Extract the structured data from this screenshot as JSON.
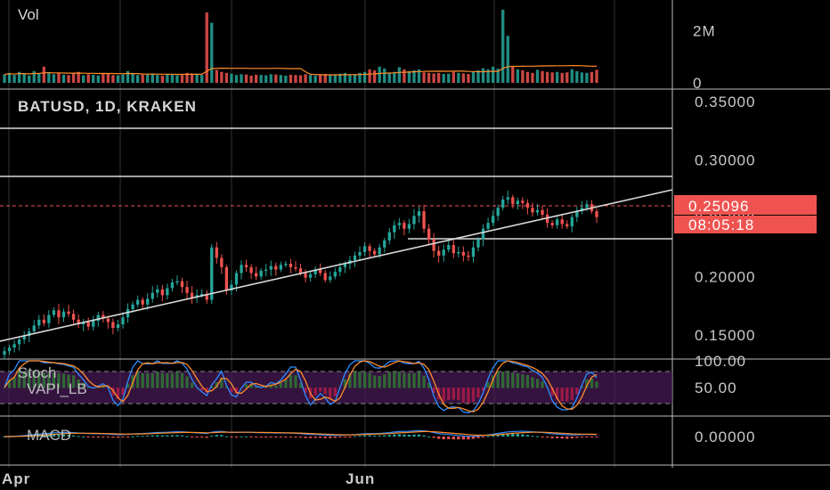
{
  "chart_data": {
    "type": "candlestick",
    "title": "BATUSD, 1D, KRAKEN",
    "price_axis": {
      "ticks": [
        {
          "value": 0.35,
          "label": "0.35000"
        },
        {
          "value": 0.3,
          "label": "0.30000"
        },
        {
          "value": 0.25,
          "label": "0.25000"
        },
        {
          "value": 0.2,
          "label": "0.20000"
        },
        {
          "value": 0.15,
          "label": "0.15000"
        }
      ],
      "ylim": [
        0.13,
        0.36
      ]
    },
    "last_price": {
      "label": "0.25096",
      "value": 0.25096,
      "countdown": "08:05:18"
    },
    "time_axis": {
      "ticks": [
        "Apr",
        "Jun"
      ]
    },
    "candles_close": [
      0.136,
      0.139,
      0.142,
      0.146,
      0.149,
      0.153,
      0.158,
      0.163,
      0.16,
      0.167,
      0.171,
      0.165,
      0.17,
      0.168,
      0.163,
      0.159,
      0.161,
      0.157,
      0.162,
      0.167,
      0.164,
      0.161,
      0.156,
      0.159,
      0.165,
      0.172,
      0.176,
      0.18,
      0.176,
      0.181,
      0.186,
      0.189,
      0.184,
      0.19,
      0.195,
      0.196,
      0.191,
      0.186,
      0.182,
      0.184,
      0.185,
      0.18,
      0.225,
      0.216,
      0.208,
      0.188,
      0.193,
      0.203,
      0.21,
      0.208,
      0.203,
      0.2,
      0.205,
      0.206,
      0.209,
      0.206,
      0.21,
      0.211,
      0.208,
      0.207,
      0.203,
      0.199,
      0.202,
      0.206,
      0.203,
      0.197,
      0.2,
      0.204,
      0.208,
      0.211,
      0.214,
      0.218,
      0.221,
      0.226,
      0.222,
      0.219,
      0.225,
      0.231,
      0.238,
      0.244,
      0.246,
      0.241,
      0.245,
      0.252,
      0.256,
      0.241,
      0.232,
      0.222,
      0.218,
      0.223,
      0.227,
      0.22,
      0.221,
      0.218,
      0.217,
      0.225,
      0.232,
      0.241,
      0.246,
      0.252,
      0.259,
      0.266,
      0.268,
      0.262,
      0.265,
      0.263,
      0.259,
      0.255,
      0.257,
      0.253,
      0.246,
      0.244,
      0.249,
      0.245,
      0.243,
      0.251,
      0.256,
      0.259,
      0.262,
      0.256,
      0.251
    ],
    "volume_axis": {
      "ticks": [
        {
          "value": 2000000,
          "label": "2M"
        },
        {
          "value": 0,
          "label": "0"
        }
      ],
      "ylim": [
        0,
        2900000
      ]
    },
    "volume": [
      320000,
      380000,
      300000,
      420000,
      360000,
      280000,
      450000,
      350000,
      620000,
      400000,
      330000,
      380000,
      310000,
      300000,
      360000,
      420000,
      290000,
      330000,
      310000,
      280000,
      360000,
      340000,
      300000,
      290000,
      320000,
      450000,
      380000,
      300000,
      310000,
      340000,
      360000,
      300000,
      280000,
      330000,
      310000,
      290000,
      300000,
      380000,
      360000,
      320000,
      300000,
      2700000,
      2300000,
      500000,
      420000,
      380000,
      350000,
      300000,
      330000,
      320000,
      280000,
      310000,
      300000,
      290000,
      330000,
      320000,
      300000,
      280000,
      310000,
      300000,
      290000,
      330000,
      300000,
      280000,
      310000,
      340000,
      300000,
      320000,
      350000,
      380000,
      330000,
      340000,
      380000,
      420000,
      520000,
      480000,
      620000,
      550000,
      380000,
      420000,
      600000,
      520000,
      450000,
      480000,
      520000,
      400000,
      380000,
      360000,
      380000,
      340000,
      350000,
      420000,
      380000,
      360000,
      340000,
      420000,
      480000,
      560000,
      520000,
      620000,
      540000,
      2800000,
      1800000,
      650000,
      520000,
      480000,
      420000,
      380000,
      500000,
      450000,
      420000,
      400000,
      420000,
      380000,
      400000,
      520000,
      450000,
      400000,
      380000,
      420000,
      500000
    ],
    "stoch_axis": {
      "ticks": [
        {
          "value": 100,
          "label": "100.00"
        },
        {
          "value": 50,
          "label": "50.00"
        }
      ],
      "ylim": [
        0,
        100
      ]
    },
    "macd_axis": {
      "ticks": [
        {
          "value": 0,
          "label": "0.00000"
        }
      ]
    },
    "indicators": [
      "Vol",
      "Stoch",
      "VAPI_LB",
      "MACD"
    ]
  },
  "colors": {
    "background": "#000000",
    "up": "#26a69a",
    "down": "#ef5350",
    "grid": "#3a3a3a",
    "axis_line": "#bbbbbb",
    "trendline": "#d9d9d9",
    "level_line": "#d9d9d9",
    "stoch_band": "#4a1c5a",
    "stoch_k": "#2f8cff",
    "stoch_d": "#ff8c2a",
    "macd_line": "#2f8cff",
    "signal_line": "#ff8c2a",
    "vol_ma": "#ff8c2a"
  },
  "labels": {
    "vol_pane_title": "Vol",
    "stoch_title": "Stoch",
    "vapi_title": "VAPI_LB",
    "macd_title": "MACD"
  }
}
